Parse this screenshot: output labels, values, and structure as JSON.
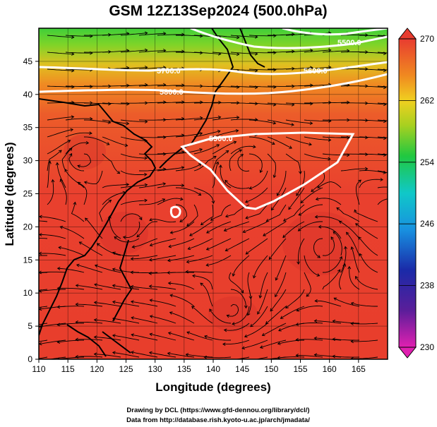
{
  "title": "GSM 12Z13Sep2024 (500.0hPa)",
  "chart_data": {
    "type": "heatmap",
    "title": "GSM 12Z13Sep2024 (500.0hPa)",
    "xlabel": "Longitude (degrees)",
    "ylabel": "Latitude  (degrees)",
    "xlim": [
      110,
      170
    ],
    "ylim": [
      0,
      50
    ],
    "x_ticks": [
      "110",
      "115",
      "120",
      "125",
      "130",
      "135",
      "140",
      "145",
      "150",
      "155",
      "160",
      "165"
    ],
    "y_ticks": [
      "0",
      "5",
      "10",
      "15",
      "20",
      "25",
      "30",
      "35",
      "40",
      "45"
    ],
    "grid": true,
    "overlay": "streamlines (wind)",
    "colorbar": {
      "min": 230,
      "max": 270,
      "tick_labels": [
        "270",
        "262",
        "254",
        "246",
        "238",
        "230"
      ],
      "colors": [
        "#d020a0",
        "#2a2a90",
        "#1060d0",
        "#10b8d0",
        "#20c840",
        "#a8d020",
        "#f0a020",
        "#e83c30"
      ]
    },
    "contours": [
      {
        "label": "5900.0"
      },
      {
        "label": "5800.0"
      },
      {
        "label": "5700.0"
      },
      {
        "label": "5600.0"
      },
      {
        "label": "5500.0"
      }
    ]
  },
  "credits": [
    "Drawing by DCL (https://www.gfd-dennou.org/library/dcl/)",
    "Data from http://database.rish.kyoto-u.ac.jp/arch/jmadata/"
  ]
}
